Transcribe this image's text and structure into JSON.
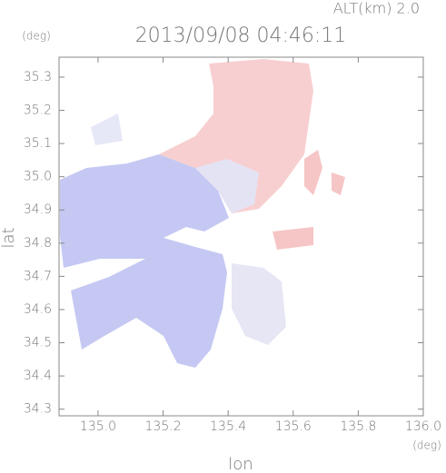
{
  "chart_data": {
    "type": "map",
    "title": "2013/09/08 04:46:11",
    "altitude_label": "ALT(km) 2.0",
    "y_unit": "(deg)",
    "x_unit": "(deg)",
    "ylabel": "lat",
    "xlabel": "lon",
    "xlim": [
      134.88,
      136.0
    ],
    "ylim": [
      34.28,
      35.36
    ],
    "xticks": [
      {
        "value": 135.0,
        "label": "135.0"
      },
      135.2,
      135.4,
      135.6,
      135.8,
      {
        "value": 136.0,
        "label": "136.0"
      }
    ],
    "yticks": [
      34.3,
      34.4,
      34.5,
      34.6,
      34.7,
      34.8,
      34.9,
      {
        "value": 35.0,
        "label": "35.0"
      },
      35.1,
      35.2,
      35.3
    ]
  }
}
